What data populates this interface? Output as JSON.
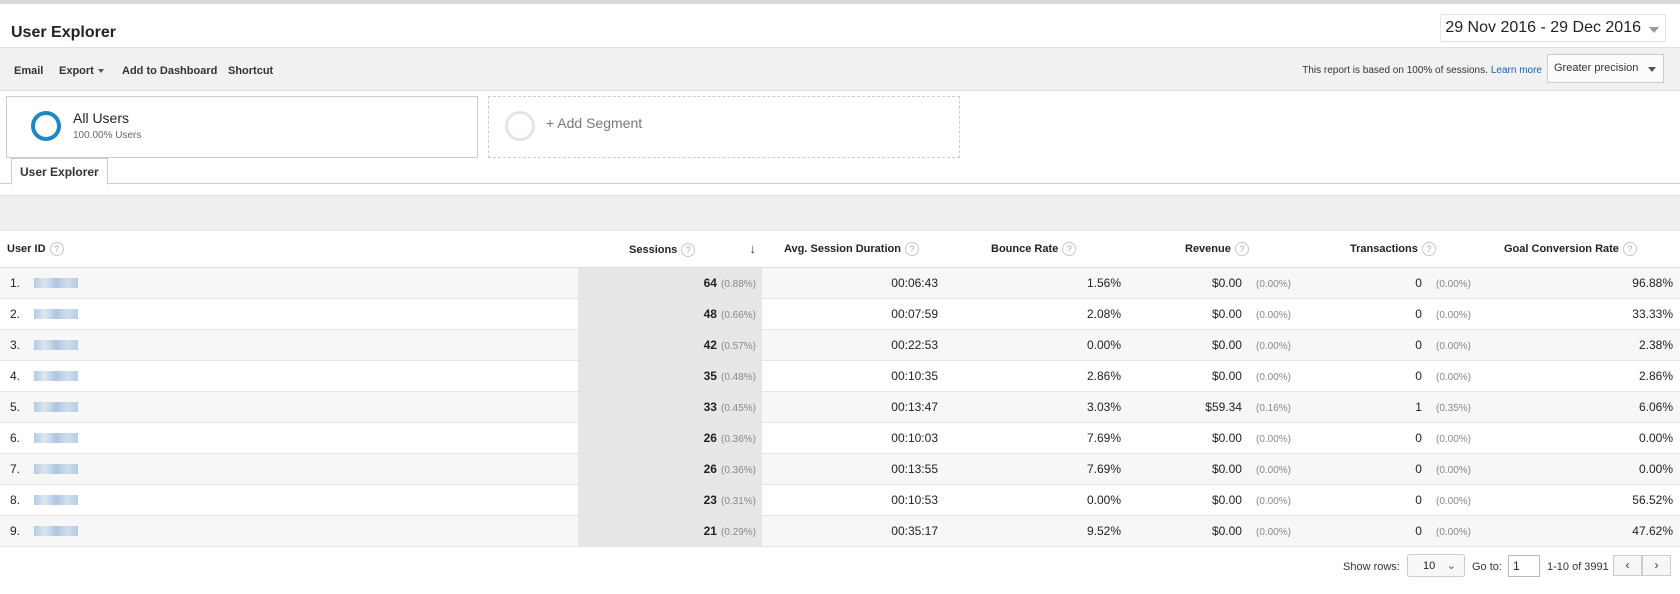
{
  "header": {
    "title": "User Explorer",
    "date_range": "29 Nov 2016 - 29 Dec 2016"
  },
  "toolbar": {
    "email": "Email",
    "export": "Export",
    "add_to_dashboard": "Add to Dashboard",
    "shortcut": "Shortcut",
    "sampling_note": "This report is based on 100% of sessions.",
    "learn_more": "Learn more",
    "precision": "Greater precision"
  },
  "segments": {
    "all_users": {
      "name": "All Users",
      "sub": "100.00% Users"
    },
    "add_segment": "+ Add Segment"
  },
  "tab": "User Explorer",
  "table": {
    "columns": {
      "user_id": "User ID",
      "sessions": "Sessions",
      "avg_duration": "Avg. Session Duration",
      "bounce_rate": "Bounce Rate",
      "revenue": "Revenue",
      "transactions": "Transactions",
      "goal_conversion": "Goal Conversion Rate"
    },
    "help_glyph": "?",
    "sort_glyph": "↓",
    "rows": [
      {
        "n": "1.",
        "sessions": "64",
        "sessions_pct": "(0.88%)",
        "duration": "00:06:43",
        "bounce": "1.56%",
        "revenue": "$0.00",
        "revenue_pct": "(0.00%)",
        "transactions": "0",
        "transactions_pct": "(0.00%)",
        "goal": "96.88%"
      },
      {
        "n": "2.",
        "sessions": "48",
        "sessions_pct": "(0.66%)",
        "duration": "00:07:59",
        "bounce": "2.08%",
        "revenue": "$0.00",
        "revenue_pct": "(0.00%)",
        "transactions": "0",
        "transactions_pct": "(0.00%)",
        "goal": "33.33%"
      },
      {
        "n": "3.",
        "sessions": "42",
        "sessions_pct": "(0.57%)",
        "duration": "00:22:53",
        "bounce": "0.00%",
        "revenue": "$0.00",
        "revenue_pct": "(0.00%)",
        "transactions": "0",
        "transactions_pct": "(0.00%)",
        "goal": "2.38%"
      },
      {
        "n": "4.",
        "sessions": "35",
        "sessions_pct": "(0.48%)",
        "duration": "00:10:35",
        "bounce": "2.86%",
        "revenue": "$0.00",
        "revenue_pct": "(0.00%)",
        "transactions": "0",
        "transactions_pct": "(0.00%)",
        "goal": "2.86%"
      },
      {
        "n": "5.",
        "sessions": "33",
        "sessions_pct": "(0.45%)",
        "duration": "00:13:47",
        "bounce": "3.03%",
        "revenue": "$59.34",
        "revenue_pct": "(0.16%)",
        "transactions": "1",
        "transactions_pct": "(0.35%)",
        "goal": "6.06%"
      },
      {
        "n": "6.",
        "sessions": "26",
        "sessions_pct": "(0.36%)",
        "duration": "00:10:03",
        "bounce": "7.69%",
        "revenue": "$0.00",
        "revenue_pct": "(0.00%)",
        "transactions": "0",
        "transactions_pct": "(0.00%)",
        "goal": "0.00%"
      },
      {
        "n": "7.",
        "sessions": "26",
        "sessions_pct": "(0.36%)",
        "duration": "00:13:55",
        "bounce": "7.69%",
        "revenue": "$0.00",
        "revenue_pct": "(0.00%)",
        "transactions": "0",
        "transactions_pct": "(0.00%)",
        "goal": "0.00%"
      },
      {
        "n": "8.",
        "sessions": "23",
        "sessions_pct": "(0.31%)",
        "duration": "00:10:53",
        "bounce": "0.00%",
        "revenue": "$0.00",
        "revenue_pct": "(0.00%)",
        "transactions": "0",
        "transactions_pct": "(0.00%)",
        "goal": "56.52%"
      },
      {
        "n": "9.",
        "sessions": "21",
        "sessions_pct": "(0.29%)",
        "duration": "00:35:17",
        "bounce": "9.52%",
        "revenue": "$0.00",
        "revenue_pct": "(0.00%)",
        "transactions": "0",
        "transactions_pct": "(0.00%)",
        "goal": "47.62%"
      }
    ]
  },
  "pager": {
    "show_rows_label": "Show rows:",
    "show_rows_value": "10",
    "goto_label": "Go to:",
    "goto_value": "1",
    "range": "1-10 of 3991",
    "prev": "‹",
    "next": "›"
  },
  "colors": {
    "accent": "#1e88c7",
    "link": "#1a5fb4"
  }
}
